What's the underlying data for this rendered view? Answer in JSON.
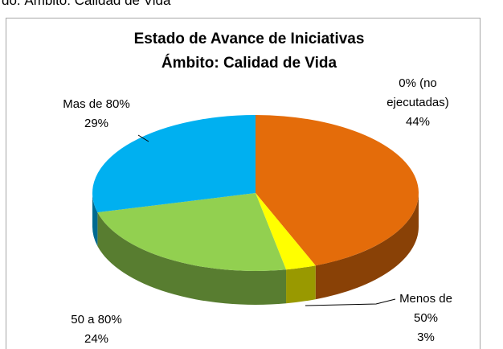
{
  "caption": "do. Ámbito: Calidad de Vida",
  "chart_data": {
    "type": "pie",
    "title": "Estado de Avance de Iniciativas\nÁmbito: Calidad de Vida",
    "categories": [
      "0% (no ejecutadas)",
      "Menos de 50%",
      "50 a 80%",
      "Mas de 80%"
    ],
    "values": [
      44,
      3,
      24,
      29
    ],
    "value_labels": [
      "44%",
      "3%",
      "24%",
      "29%"
    ],
    "colors": [
      "#e46c0a",
      "#ffff00",
      "#92d050",
      "#00b0f0"
    ]
  }
}
